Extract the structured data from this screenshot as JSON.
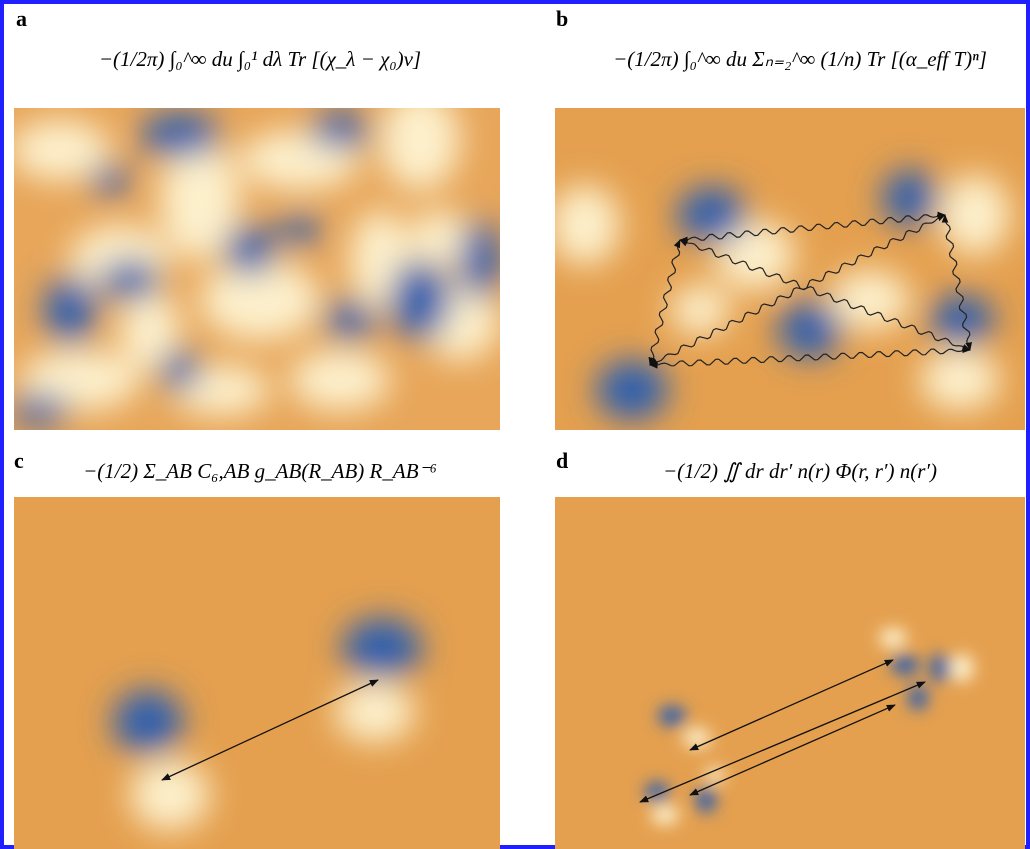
{
  "panels": [
    {
      "label": "a",
      "formula": "−(1/2π) ∫₀^∞ du ∫₀¹ dλ Tr [(χ_λ − χ₀)v]"
    },
    {
      "label": "b",
      "formula": "−(1/2π) ∫₀^∞ du Σₙ₌₂^∞ (1/n) Tr [(α_eff T)ⁿ]"
    },
    {
      "label": "c",
      "formula": "−(1/2) Σ_AB C₆,AB g_AB(R_AB) R_AB⁻⁶"
    },
    {
      "label": "d",
      "formula": "−(1/2) ∬ dr dr′ n(r) Φ(r, r′) n(r′)"
    }
  ]
}
